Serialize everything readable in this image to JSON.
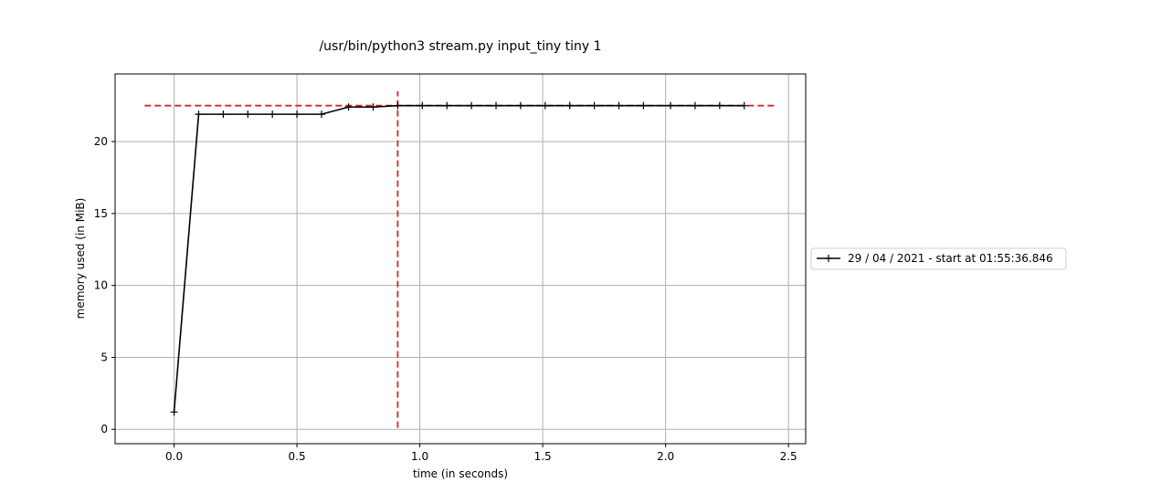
{
  "chart_data": {
    "type": "line",
    "title": "/usr/bin/python3 stream.py input_tiny tiny 1",
    "xlabel": "time (in seconds)",
    "ylabel": "memory used (in MiB)",
    "xlim": [
      -0.24,
      2.57
    ],
    "ylim": [
      -1.0,
      24.7
    ],
    "xticks": [
      0.0,
      0.5,
      1.0,
      1.5,
      2.0,
      2.5
    ],
    "xtick_labels": [
      "0.0",
      "0.5",
      "1.0",
      "1.5",
      "2.0",
      "2.5"
    ],
    "yticks": [
      0,
      5,
      10,
      15,
      20
    ],
    "ytick_labels": [
      "0",
      "5",
      "10",
      "15",
      "20"
    ],
    "grid": true,
    "legend_position": "right, outside plot area",
    "series": [
      {
        "name": "29 / 04 / 2021 - start at 01:55:36.846",
        "color": "#000000",
        "marker": "+",
        "x": [
          0.0,
          0.1,
          0.2,
          0.3,
          0.4,
          0.5,
          0.6,
          0.71,
          0.81,
          0.91,
          1.01,
          1.11,
          1.21,
          1.31,
          1.41,
          1.51,
          1.61,
          1.71,
          1.81,
          1.91,
          2.02,
          2.12,
          2.22,
          2.32
        ],
        "y": [
          1.2,
          21.9,
          21.9,
          21.9,
          21.9,
          21.9,
          21.9,
          22.4,
          22.4,
          22.5,
          22.5,
          22.5,
          22.5,
          22.5,
          22.5,
          22.5,
          22.5,
          22.5,
          22.5,
          22.5,
          22.5,
          22.5,
          22.5,
          22.5
        ]
      }
    ],
    "reference_lines": [
      {
        "orientation": "horizontal",
        "value": 22.5,
        "from": -0.12,
        "to": 2.45,
        "color": "#d62728",
        "style": "dashed"
      },
      {
        "orientation": "vertical",
        "value": 0.91,
        "from": 0.1,
        "to": 23.5,
        "color": "#d62728",
        "style": "dashed"
      }
    ]
  }
}
